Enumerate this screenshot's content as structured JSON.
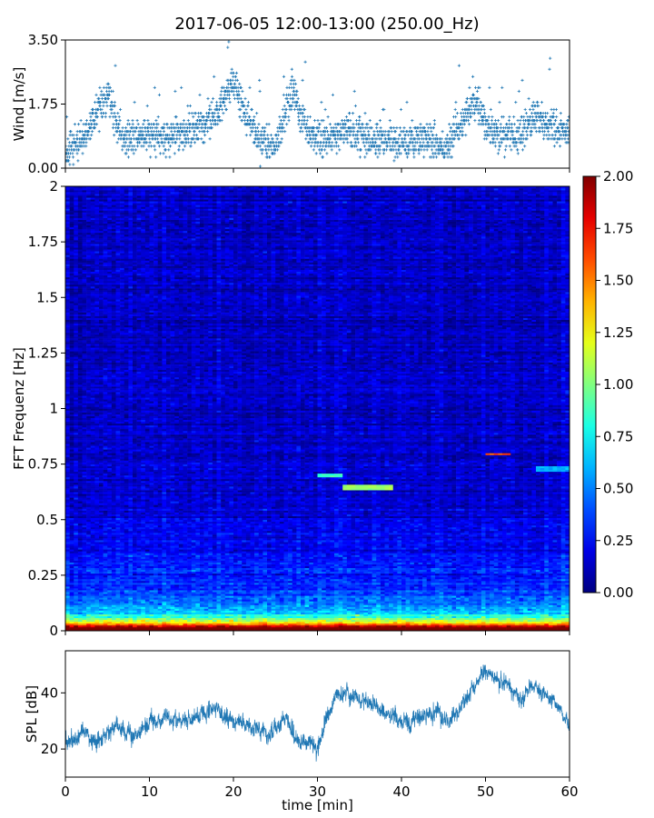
{
  "figure": {
    "title": "2017-06-05 12:00-13:00 (250.00_Hz)"
  },
  "chart_data": [
    {
      "type": "scatter",
      "name": "wind",
      "ylabel": "Wind [m/s]",
      "xlim": [
        0,
        60
      ],
      "ylim": [
        0,
        3.5
      ],
      "yticks": [
        "0.00",
        "1.75",
        "3.50"
      ],
      "yticks_values": [
        0,
        1.75,
        3.5
      ],
      "color": "#1f77b4",
      "marker": "+",
      "sample_step_min": 0.025,
      "y_profile": {
        "x": [
          0,
          2,
          4,
          5,
          6,
          7,
          9,
          12,
          15,
          17,
          18,
          20,
          21,
          23,
          25,
          27,
          29,
          31,
          33,
          35,
          37,
          40,
          43,
          45,
          47,
          49,
          50,
          52,
          54,
          56,
          58,
          60
        ],
        "y": [
          0.4,
          0.8,
          1.6,
          2.1,
          1.4,
          0.8,
          0.9,
          0.8,
          1.0,
          1.3,
          1.5,
          2.4,
          1.7,
          0.8,
          0.6,
          2.1,
          0.9,
          0.8,
          1.0,
          0.9,
          0.8,
          0.7,
          0.8,
          0.5,
          1.2,
          1.9,
          1.1,
          0.9,
          0.9,
          1.4,
          1.1,
          1.0
        ]
      }
    },
    {
      "type": "heatmap",
      "name": "spectrogram",
      "ylabel": "FFT Frequenz [Hz]",
      "xlim": [
        0,
        60
      ],
      "ylim": [
        0,
        2
      ],
      "yticks": [
        "0",
        "0.25",
        "0.5",
        "0.75",
        "1",
        "1.25",
        "1.5",
        "1.75",
        "2"
      ],
      "yticks_values": [
        0,
        0.25,
        0.5,
        0.75,
        1,
        1.25,
        1.5,
        1.75,
        2
      ],
      "colormap": "jet",
      "clim": [
        0,
        2
      ],
      "colorbar_ticks": [
        "0.00",
        "0.25",
        "0.50",
        "0.75",
        "1.00",
        "1.25",
        "1.50",
        "1.75",
        "2.00"
      ],
      "colorbar_ticks_values": [
        0,
        0.25,
        0.5,
        0.75,
        1,
        1.25,
        1.5,
        1.75,
        2
      ],
      "time_bins": 120,
      "freq_bins": 240,
      "features": [
        {
          "t": [
            30,
            33
          ],
          "f": [
            0.69,
            0.71
          ],
          "v": 0.85
        },
        {
          "t": [
            33,
            39
          ],
          "f": [
            0.63,
            0.66
          ],
          "v": 1.05
        },
        {
          "t": [
            50,
            53
          ],
          "f": [
            0.79,
            0.8
          ],
          "v": 1.6
        },
        {
          "t": [
            56,
            60
          ],
          "f": [
            0.72,
            0.74
          ],
          "v": 0.6
        }
      ]
    },
    {
      "type": "line",
      "name": "spl",
      "xlabel": "time [min]",
      "ylabel": "SPL [dB]",
      "xlim": [
        0,
        60
      ],
      "ylim": [
        10,
        55
      ],
      "xticks": [
        "0",
        "10",
        "20",
        "30",
        "40",
        "50",
        "60"
      ],
      "xticks_values": [
        0,
        10,
        20,
        30,
        40,
        50,
        60
      ],
      "yticks": [
        "20",
        "40"
      ],
      "yticks_values": [
        20,
        40
      ],
      "color": "#1f77b4",
      "y_profile": {
        "x": [
          0,
          2,
          4,
          6,
          8,
          10,
          12,
          14,
          16,
          18,
          20,
          22,
          24,
          26,
          28,
          30,
          32,
          34,
          36,
          38,
          40,
          42,
          44,
          46,
          48,
          50,
          52,
          54,
          56,
          58,
          60
        ],
        "y": [
          22,
          26,
          23,
          28,
          25,
          29,
          31,
          30,
          32,
          34,
          30,
          28,
          25,
          30,
          22,
          21,
          38,
          40,
          36,
          33,
          30,
          31,
          33,
          29,
          40,
          48,
          44,
          38,
          42,
          37,
          30
        ]
      }
    }
  ]
}
